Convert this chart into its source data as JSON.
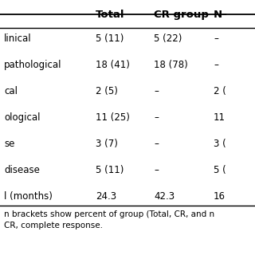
{
  "headers": [
    "",
    "Total",
    "CR group",
    "N–"
  ],
  "rows": [
    [
      "linical",
      "5 (11)",
      "5 (22)",
      "–"
    ],
    [
      "pathological",
      "18 (41)",
      "18 (78)",
      "–"
    ],
    [
      "cal",
      "2 (5)",
      "–",
      "2 ("
    ],
    [
      "ological",
      "11 (25)",
      "–",
      "11"
    ],
    [
      "se",
      "3 (7)",
      "–",
      "3 ("
    ],
    [
      "disease",
      "5 (11)",
      "–",
      "5 ("
    ],
    [
      "l (months)",
      "24.3",
      "42.3",
      "16"
    ]
  ],
  "footer_lines": [
    "n brackets show percent of group (Total, CR, and n",
    "CR, complete response."
  ],
  "bg_color": "#ffffff",
  "font_size": 8.5,
  "header_font_size": 9.5
}
